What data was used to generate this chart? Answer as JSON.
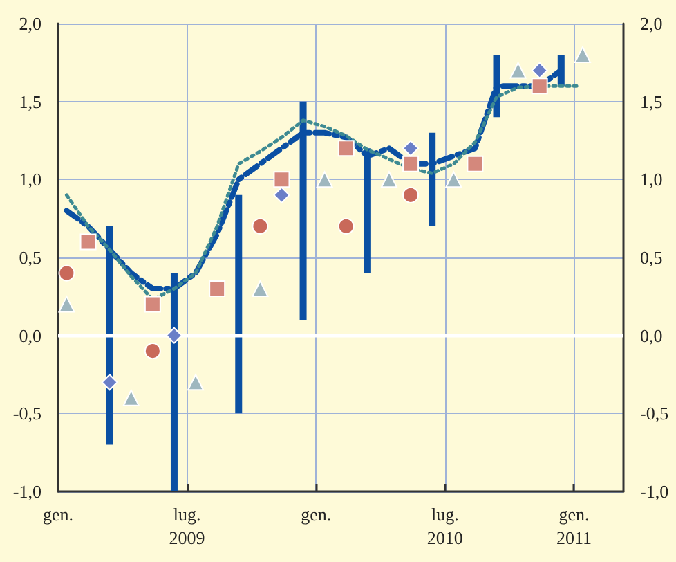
{
  "chart_data": {
    "type": "line",
    "xlim": [
      "2009-01",
      "2011-03-10"
    ],
    "xticks": [
      {
        "value": "2009-01",
        "label": "gen."
      },
      {
        "value": "2009-07",
        "label": "lug.\n2009"
      },
      {
        "value": "2010-01",
        "label": "gen."
      },
      {
        "value": "2010-07",
        "label": "lug.\n2010"
      },
      {
        "value": "2011-01",
        "label": "gen.\n2011"
      }
    ],
    "ylim": [
      -1,
      2
    ],
    "yticks": [
      {
        "value": -1,
        "label": "-1,0"
      },
      {
        "value": -0.5,
        "label": "-0,5"
      },
      {
        "value": 0,
        "label": "0,0"
      },
      {
        "value": 0.5,
        "label": "0,5"
      },
      {
        "value": 1,
        "label": "1,0"
      },
      {
        "value": 1.5,
        "label": "1,5"
      },
      {
        "value": 2,
        "label": "2,0"
      }
    ],
    "y2lim": [
      -1,
      2
    ],
    "y2ticks": [
      {
        "value": -1,
        "label": "-1,0"
      },
      {
        "value": -0.5,
        "label": "-0,5"
      },
      {
        "value": 0,
        "label": "0,0"
      },
      {
        "value": 0.5,
        "label": "0,5"
      },
      {
        "value": 1,
        "label": "1,0"
      },
      {
        "value": 1.5,
        "label": "1,5"
      },
      {
        "value": 2,
        "label": "2,0"
      }
    ],
    "grid": true,
    "ref_lines": [
      {
        "axis": "y",
        "value": 0,
        "color": "#ffffff"
      }
    ],
    "series": [
      {
        "type": "bar",
        "color": "#0a4fa3",
        "x": [
          "2009-03-13",
          "2009-06-13",
          "2009-09-13",
          "2009-12-13",
          "2010-03-13",
          "2010-06-13",
          "2010-09-13",
          "2010-12-13"
        ],
        "base": [
          -0.7,
          -1.0,
          -0.5,
          0.1,
          0.4,
          0.7,
          1.4,
          1.6
        ],
        "values": [
          1.4,
          1.4,
          1.4,
          1.4,
          0.8,
          0.6,
          0.4,
          0.2
        ]
      },
      {
        "color": "#0a4fa3",
        "line_style": "dashdot",
        "marker": "none",
        "x": [
          "2009-01-13",
          "2009-02-13",
          "2009-03-13",
          "2009-04-13",
          "2009-05-13",
          "2009-06-13",
          "2009-07-13",
          "2009-08-13",
          "2009-09-13",
          "2009-10-13",
          "2009-11-13",
          "2009-12-13",
          "2010-01-13",
          "2010-02-13",
          "2010-03-13",
          "2010-04-13",
          "2010-05-13",
          "2010-06-13",
          "2010-07-13",
          "2010-08-13",
          "2010-09-13",
          "2010-10-13",
          "2010-11-13",
          "2010-12-13"
        ],
        "values": [
          0.8,
          0.7,
          0.55,
          0.4,
          0.3,
          0.3,
          0.4,
          0.65,
          1.0,
          1.1,
          1.2,
          1.3,
          1.3,
          1.27,
          1.15,
          1.2,
          1.1,
          1.1,
          1.15,
          1.2,
          1.6,
          1.6,
          1.6,
          1.7
        ]
      },
      {
        "color": "#3d8a92",
        "line_style": "dotted",
        "marker": "none",
        "x": [
          "2009-01-13",
          "2009-02-13",
          "2009-03-13",
          "2009-04-13",
          "2009-05-13",
          "2009-06-13",
          "2009-07-13",
          "2009-08-13",
          "2009-09-13",
          "2009-10-13",
          "2009-11-13",
          "2009-12-13",
          "2010-01-13",
          "2010-02-13",
          "2010-03-13",
          "2010-04-13",
          "2010-05-13",
          "2010-06-13",
          "2010-07-13",
          "2010-08-13",
          "2010-09-13",
          "2010-10-13",
          "2010-11-13",
          "2010-12-13",
          "2011-01-10"
        ],
        "values": [
          0.9,
          0.7,
          0.55,
          0.38,
          0.23,
          0.3,
          0.4,
          0.7,
          1.1,
          1.18,
          1.27,
          1.38,
          1.34,
          1.28,
          1.19,
          1.13,
          1.07,
          1.04,
          1.1,
          1.24,
          1.53,
          1.59,
          1.6,
          1.6,
          1.6
        ]
      },
      {
        "type": "scatter",
        "color": "#c9695a",
        "marker": "circle",
        "x": [
          "2009-01-13",
          "2009-05-13",
          "2009-10-13",
          "2010-02-13",
          "2010-05-13"
        ],
        "values": [
          0.4,
          -0.1,
          0.7,
          0.7,
          0.9
        ]
      },
      {
        "type": "scatter",
        "color": "#d4887c",
        "marker": "square",
        "x": [
          "2009-02-13",
          "2009-05-13",
          "2009-08-13",
          "2009-11-13",
          "2010-02-13",
          "2010-05-13",
          "2010-08-13",
          "2010-11-13"
        ],
        "values": [
          0.6,
          0.2,
          0.3,
          1.0,
          1.2,
          1.1,
          1.1,
          1.6
        ]
      },
      {
        "type": "scatter",
        "color": "#6a7fc8",
        "marker": "diamond",
        "x": [
          "2009-03-13",
          "2009-06-13",
          "2009-11-13",
          "2010-05-13",
          "2010-11-13"
        ],
        "values": [
          -0.3,
          0.0,
          0.9,
          1.2,
          1.7
        ]
      },
      {
        "type": "scatter",
        "color": "#9fb7bf",
        "marker": "triangle",
        "x": [
          "2009-01-13",
          "2009-04-13",
          "2009-07-13",
          "2009-10-13",
          "2010-01-13",
          "2010-04-13",
          "2010-07-13",
          "2010-10-13",
          "2011-01-13"
        ],
        "values": [
          0.2,
          -0.4,
          -0.3,
          0.3,
          1.0,
          1.0,
          1.0,
          1.7,
          1.8
        ]
      }
    ]
  }
}
